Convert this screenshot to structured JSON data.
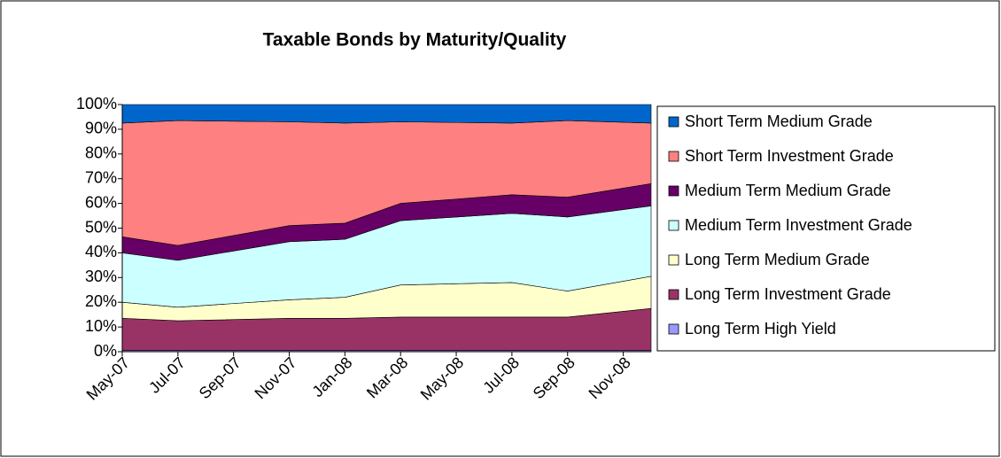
{
  "chart_data": {
    "type": "stacked_area_100",
    "title": "Taxable Bonds by Maturity/Quality",
    "x": [
      0,
      2,
      6,
      8,
      10,
      14,
      16,
      19
    ],
    "xlim": [
      0,
      19
    ],
    "xticks": [
      {
        "value": 0,
        "label": "May-07"
      },
      {
        "value": 2,
        "label": "Jul-07"
      },
      {
        "value": 4,
        "label": "Sep-07"
      },
      {
        "value": 6,
        "label": "Nov-07"
      },
      {
        "value": 8,
        "label": "Jan-08"
      },
      {
        "value": 10,
        "label": "Mar-08"
      },
      {
        "value": 12,
        "label": "May-08"
      },
      {
        "value": 14,
        "label": "Jul-08"
      },
      {
        "value": 16,
        "label": "Sep-08"
      },
      {
        "value": 18,
        "label": "Nov-08"
      }
    ],
    "ylim": [
      0,
      100
    ],
    "yticks": [
      {
        "value": 0,
        "label": "0%"
      },
      {
        "value": 10,
        "label": "10%"
      },
      {
        "value": 20,
        "label": "20%"
      },
      {
        "value": 30,
        "label": "30%"
      },
      {
        "value": 40,
        "label": "40%"
      },
      {
        "value": 50,
        "label": "50%"
      },
      {
        "value": 60,
        "label": "60%"
      },
      {
        "value": 70,
        "label": "70%"
      },
      {
        "value": 80,
        "label": "80%"
      },
      {
        "value": 90,
        "label": "90%"
      },
      {
        "value": 100,
        "label": "100%"
      }
    ],
    "series": [
      {
        "name": "Long Term High Yield",
        "color": "#9999ff",
        "values": [
          0.5,
          0.5,
          0.5,
          0.5,
          0.5,
          0.5,
          0.5,
          0.5
        ]
      },
      {
        "name": "Long Term Investment Grade",
        "color": "#993366",
        "values": [
          13,
          12,
          13,
          13,
          13.5,
          13.5,
          13.5,
          17
        ]
      },
      {
        "name": "Long Term Medium Grade",
        "color": "#ffffcc",
        "values": [
          6.5,
          5.5,
          7.5,
          8.5,
          13,
          14,
          10.5,
          13
        ]
      },
      {
        "name": "Medium Term Investment Grade",
        "color": "#ccffff",
        "values": [
          20,
          19,
          23.5,
          23.5,
          26,
          28,
          30,
          28.5
        ]
      },
      {
        "name": "Medium Term Medium Grade",
        "color": "#660066",
        "values": [
          6.5,
          6,
          6.5,
          6.5,
          7,
          7.5,
          8,
          9
        ]
      },
      {
        "name": "Short Term Investment Grade",
        "color": "#ff8080",
        "values": [
          46,
          50.5,
          42,
          40.5,
          33,
          29,
          31,
          24.5
        ]
      },
      {
        "name": "Short Term Medium Grade",
        "color": "#0066cc",
        "values": [
          7.5,
          6.5,
          7,
          7.5,
          7,
          7.5,
          6.5,
          7.5
        ]
      }
    ]
  }
}
